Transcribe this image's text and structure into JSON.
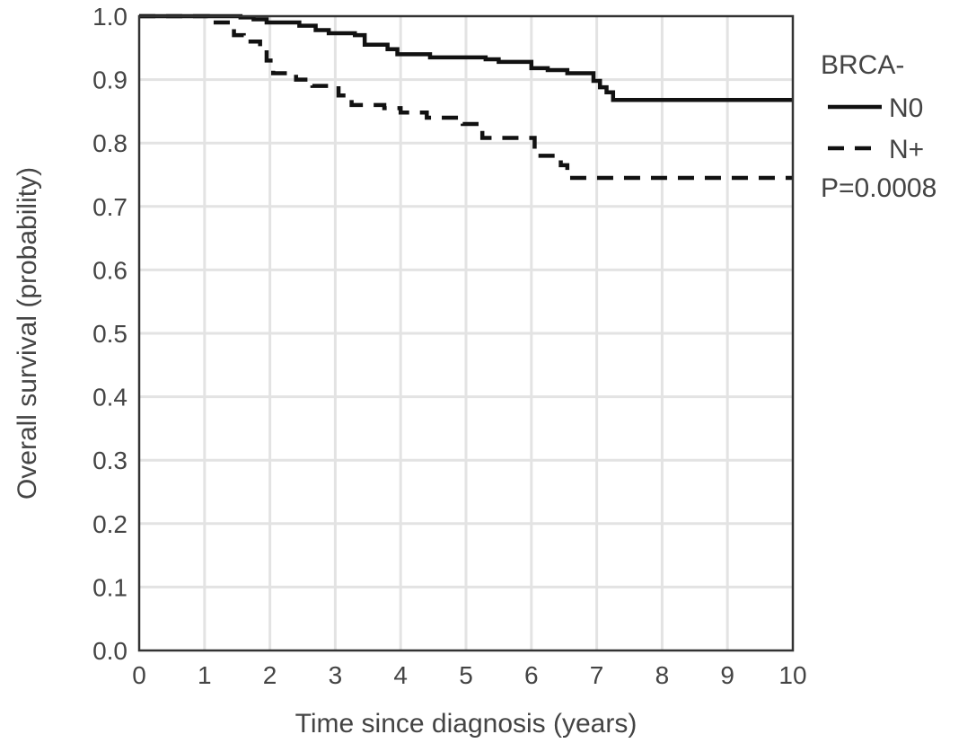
{
  "chart_data": {
    "type": "line",
    "title": "",
    "xlabel": "Time since diagnosis (years)",
    "ylabel": "Overall survival (probability)",
    "xlim": [
      0,
      10
    ],
    "ylim": [
      0.0,
      1.0
    ],
    "xticks": [
      0,
      1,
      2,
      3,
      4,
      5,
      6,
      7,
      8,
      9,
      10
    ],
    "yticks": [
      "0.0",
      "0.1",
      "0.2",
      "0.3",
      "0.4",
      "0.5",
      "0.6",
      "0.7",
      "0.8",
      "0.9",
      "1.0"
    ],
    "grid": true,
    "step": true,
    "legend": {
      "title": "BRCA-",
      "position": "right",
      "note": "P=0.0008"
    },
    "series": [
      {
        "name": "N0",
        "style": "solid",
        "color": "#111111",
        "x": [
          0,
          1.55,
          1.75,
          1.95,
          2.45,
          2.7,
          2.9,
          3.3,
          3.45,
          3.8,
          3.95,
          4.45,
          5.3,
          5.5,
          6.0,
          6.25,
          6.55,
          6.95,
          7.05,
          7.15,
          7.25,
          10.0
        ],
        "y": [
          1.0,
          0.998,
          0.995,
          0.99,
          0.985,
          0.978,
          0.973,
          0.97,
          0.955,
          0.948,
          0.94,
          0.935,
          0.932,
          0.928,
          0.918,
          0.915,
          0.91,
          0.898,
          0.888,
          0.88,
          0.868,
          0.868
        ]
      },
      {
        "name": "N+",
        "style": "dashed",
        "color": "#111111",
        "x": [
          0,
          1.05,
          1.45,
          1.6,
          1.85,
          1.95,
          2.05,
          2.4,
          2.65,
          3.05,
          3.25,
          3.75,
          4.0,
          4.4,
          4.95,
          5.25,
          6.05,
          6.45,
          6.55,
          10.0
        ],
        "y": [
          1.0,
          0.99,
          0.97,
          0.96,
          0.95,
          0.93,
          0.91,
          0.9,
          0.89,
          0.875,
          0.86,
          0.855,
          0.848,
          0.84,
          0.83,
          0.808,
          0.78,
          0.765,
          0.745,
          0.745
        ]
      }
    ]
  }
}
